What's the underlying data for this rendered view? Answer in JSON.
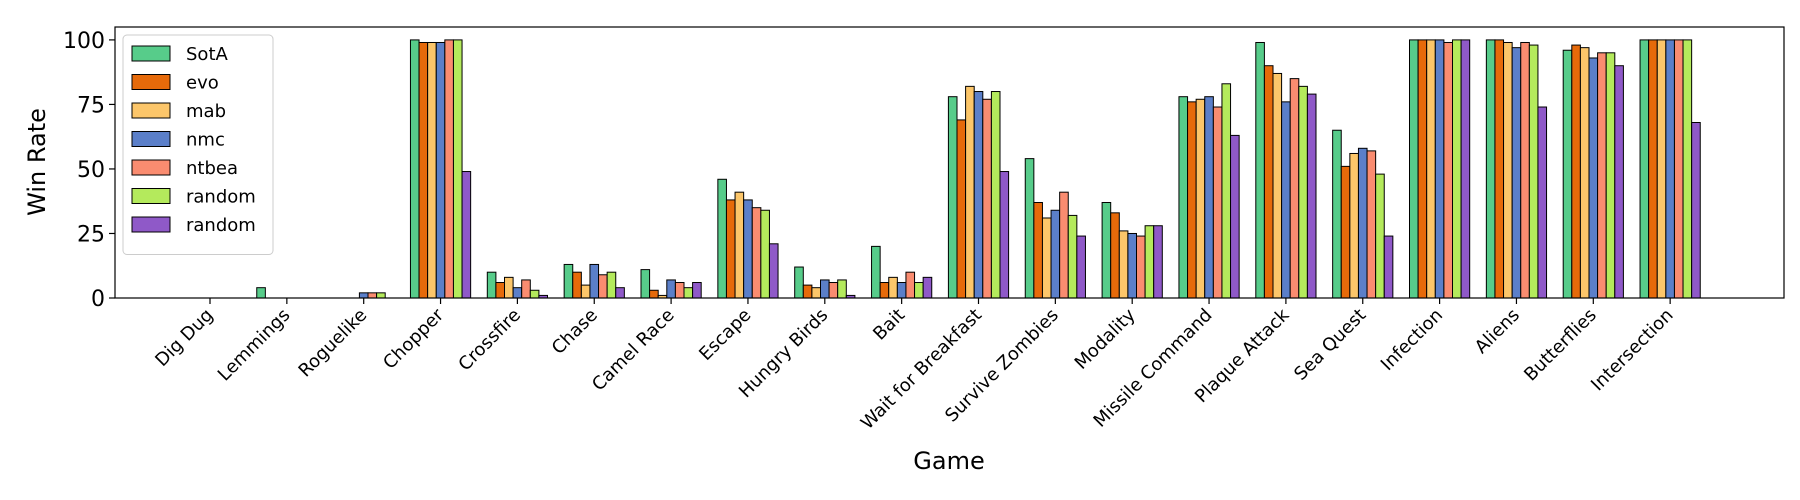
{
  "chart_data": {
    "type": "bar",
    "xlabel": "Game",
    "ylabel": "Win Rate",
    "ylim": [
      0,
      105
    ],
    "yticks": [
      0,
      25,
      50,
      75,
      100
    ],
    "legend_position": "top-left",
    "grid": false,
    "categories": [
      "Dig Dug",
      "Lemmings",
      "Roguelike",
      "Chopper",
      "Crossfire",
      "Chase",
      "Camel Race",
      "Escape",
      "Hungry Birds",
      "Bait",
      "Wait for Breakfast",
      "Survive Zombies",
      "Modality",
      "Missile Command",
      "Plaque Attack",
      "Sea Quest",
      "Infection",
      "Aliens",
      "Butterflies",
      "Intersection"
    ],
    "series": [
      {
        "name": "SotA",
        "color": "#57cc8a",
        "values": [
          0,
          4,
          0,
          100,
          10,
          13,
          11,
          46,
          12,
          20,
          78,
          54,
          37,
          78,
          99,
          65,
          100,
          100,
          96,
          100
        ]
      },
      {
        "name": "evo",
        "color": "#e66a0a",
        "values": [
          0,
          0,
          0,
          99,
          6,
          10,
          3,
          38,
          5,
          6,
          69,
          37,
          33,
          76,
          90,
          51,
          100,
          100,
          98,
          100
        ]
      },
      {
        "name": "mab",
        "color": "#fcc66a",
        "values": [
          0,
          0,
          0,
          99,
          8,
          5,
          1,
          41,
          4,
          8,
          82,
          31,
          26,
          77,
          87,
          56,
          100,
          99,
          97,
          100
        ]
      },
      {
        "name": "nmc",
        "color": "#5b7fc9",
        "values": [
          0,
          0,
          2,
          99,
          4,
          13,
          7,
          38,
          7,
          6,
          80,
          34,
          25,
          78,
          76,
          58,
          100,
          97,
          93,
          100
        ]
      },
      {
        "name": "ntbea",
        "color": "#fa8c70",
        "values": [
          0,
          0,
          2,
          100,
          7,
          9,
          6,
          35,
          6,
          10,
          77,
          41,
          24,
          74,
          85,
          57,
          99,
          99,
          95,
          100
        ]
      },
      {
        "name": "random",
        "color": "#b4ea5c",
        "values": [
          0,
          0,
          2,
          100,
          3,
          10,
          4,
          34,
          7,
          6,
          80,
          32,
          28,
          83,
          82,
          48,
          100,
          98,
          95,
          100
        ]
      },
      {
        "name": "random",
        "color": "#8f59c8",
        "values": [
          0,
          0,
          0,
          49,
          1,
          4,
          6,
          21,
          1,
          8,
          49,
          24,
          28,
          63,
          79,
          24,
          100,
          74,
          90,
          68
        ]
      }
    ]
  }
}
